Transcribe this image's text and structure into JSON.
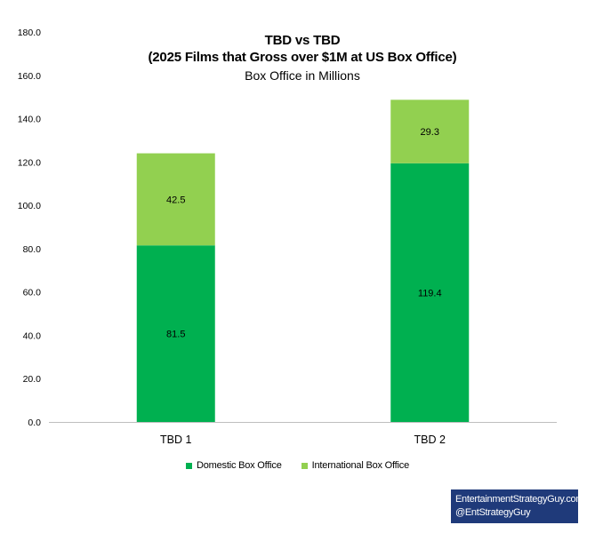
{
  "chart_data": {
    "type": "bar",
    "stacked": true,
    "title_lines": [
      "TBD vs TBD",
      "(2025 Films that Gross over $1M at US Box Office)"
    ],
    "subtitle": "Box Office in Millions",
    "categories": [
      "TBD 1",
      "TBD 2"
    ],
    "series": [
      {
        "name": "Domestic Box Office",
        "values": [
          81.5,
          119.4
        ],
        "labels": [
          "81.5",
          "119.4"
        ],
        "color": "#00b050"
      },
      {
        "name": "International Box Office",
        "values": [
          42.5,
          29.3
        ],
        "labels": [
          "42.5",
          "29.3"
        ],
        "color": "#92d050"
      }
    ],
    "y_ticks": [
      "0.0",
      "20.0",
      "40.0",
      "60.0",
      "80.0",
      "100.0",
      "120.0",
      "140.0",
      "160.0",
      "180.0"
    ],
    "ylim": [
      0,
      180
    ],
    "grid": false,
    "legend_position": "bottom"
  },
  "credit": {
    "line1": "EntertainmentStrategyGuy.com",
    "line2": "@EntStrategyGuy"
  }
}
